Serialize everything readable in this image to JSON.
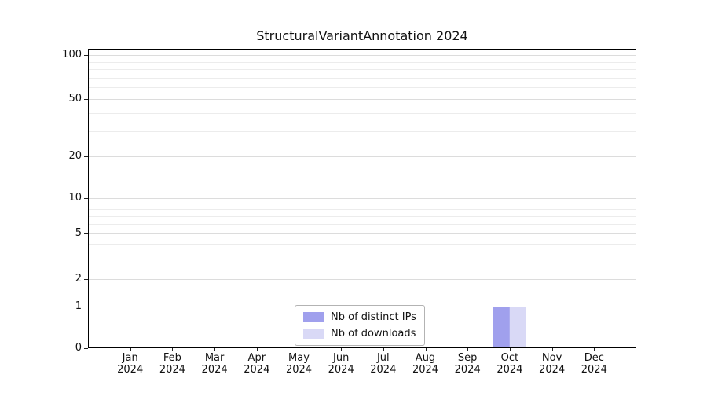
{
  "chart_data": {
    "type": "bar",
    "title": "StructuralVariantAnnotation 2024",
    "categories": [
      "Jan",
      "Feb",
      "Mar",
      "Apr",
      "May",
      "Jun",
      "Jul",
      "Aug",
      "Sep",
      "Oct",
      "Nov",
      "Dec"
    ],
    "x_year": "2024",
    "series": [
      {
        "name": "Nb of distinct IPs",
        "color": "#a0a0ed",
        "values": [
          0,
          0,
          0,
          0,
          0,
          0,
          0,
          0,
          0,
          1,
          0,
          0
        ]
      },
      {
        "name": "Nb of downloads",
        "color": "#d9d9f6",
        "values": [
          0,
          0,
          0,
          0,
          0,
          0,
          0,
          0,
          0,
          1,
          0,
          0
        ]
      }
    ],
    "yticks": [
      0,
      1,
      2,
      5,
      10,
      20,
      50,
      100
    ],
    "ylim": [
      0,
      110
    ],
    "yscale": "symlog",
    "grid": "horizontal",
    "grid_color_major": "#dcdcdc",
    "grid_color_minor": "#ececec",
    "legend_position": "bottom-center-inside",
    "plot_background": "#ffffff"
  }
}
